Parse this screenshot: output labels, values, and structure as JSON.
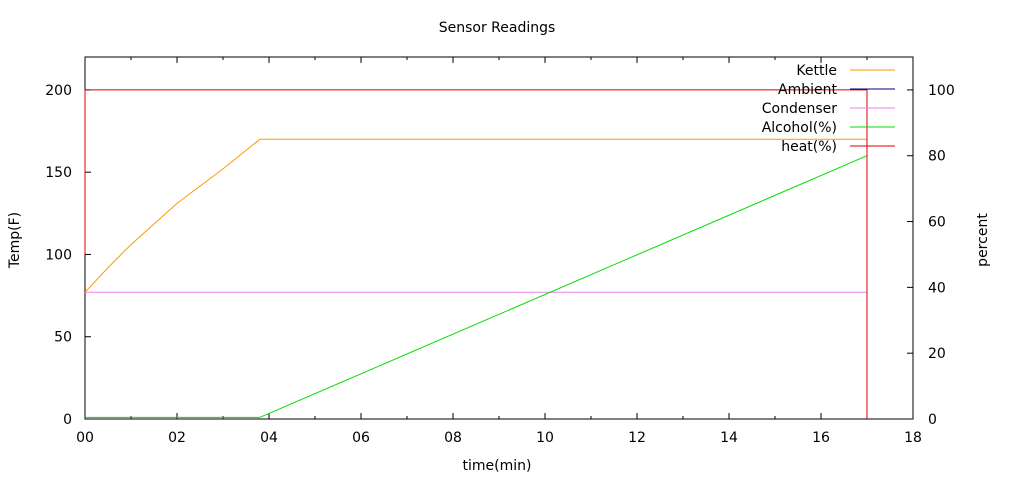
{
  "chart_data": {
    "type": "line",
    "title": "Sensor Readings",
    "xlabel": "time(min)",
    "ylabel": "Temp(F)",
    "y2label": "percent",
    "xlim": [
      0,
      18
    ],
    "ylim": [
      0,
      220
    ],
    "y2lim": [
      0,
      110
    ],
    "x_ticks": [
      0,
      2,
      4,
      6,
      8,
      10,
      12,
      14,
      16,
      18
    ],
    "x_tick_labels": [
      "00",
      "02",
      "04",
      "06",
      "08",
      "10",
      "12",
      "14",
      "16",
      "18"
    ],
    "y_ticks": [
      0,
      50,
      100,
      150,
      200
    ],
    "y2_ticks": [
      0,
      20,
      40,
      60,
      80,
      100
    ],
    "grid": false,
    "legend_position": "top-right",
    "series": [
      {
        "name": "Kettle",
        "axis": "y",
        "color": "#ff9900",
        "x": [
          0,
          0.5,
          1,
          2,
          3,
          3.8,
          17.0
        ],
        "y": [
          77,
          92,
          106,
          131,
          152,
          170,
          170
        ]
      },
      {
        "name": "Ambient",
        "axis": "y",
        "color": "#000080",
        "x": [],
        "y": []
      },
      {
        "name": "Condenser",
        "axis": "y",
        "color": "#ee82ee",
        "x": [
          0,
          17.0
        ],
        "y": [
          77,
          77
        ]
      },
      {
        "name": "Alcohol(%)",
        "axis": "y2",
        "color": "#00dd00",
        "x": [
          0,
          3.8,
          17.0
        ],
        "y": [
          0.5,
          0.5,
          80
        ]
      },
      {
        "name": "heat(%)",
        "axis": "y2",
        "color": "#dd0000",
        "x": [
          0,
          0,
          17.0,
          17.0
        ],
        "y": [
          50,
          100,
          100,
          0
        ]
      }
    ]
  }
}
